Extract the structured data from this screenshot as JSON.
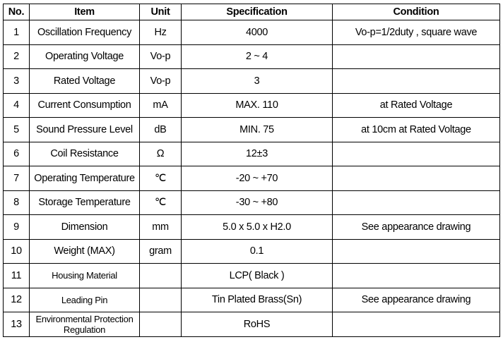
{
  "table": {
    "header": [
      "No.",
      "Item",
      "Unit",
      "Specification",
      "Condition"
    ],
    "rows": [
      {
        "no": "1",
        "item": "Oscillation Frequency",
        "unit": "Hz",
        "spec": "4000",
        "condition": "Vo-p=1/2duty , square wave"
      },
      {
        "no": "2",
        "item": "Operating Voltage",
        "unit": "Vo-p",
        "spec": "2 ~ 4"
      },
      {
        "no": "3",
        "item": "Rated Voltage",
        "unit": "Vo-p",
        "spec": "3"
      },
      {
        "no": "4",
        "item": "Current Consumption",
        "unit": "mA",
        "spec": "MAX. 110",
        "condition": "at Rated Voltage"
      },
      {
        "no": "5",
        "item": "Sound Pressure Level",
        "unit": "dB",
        "spec": "MIN. 75",
        "condition": "at 10cm at Rated Voltage"
      },
      {
        "no": "6",
        "item": "Coil Resistance",
        "unit": "Ω",
        "spec": "12±3"
      },
      {
        "no": "7",
        "item": "Operating Temperature",
        "unit": "℃",
        "spec": "-20 ~ +70"
      },
      {
        "no": "8",
        "item": "Storage Temperature",
        "unit": "℃",
        "spec": "-30 ~ +80"
      },
      {
        "no": "9",
        "item": "Dimension",
        "unit": "mm",
        "spec": "5.0 x 5.0 x H2.0",
        "condition": "See appearance drawing"
      },
      {
        "no": "10",
        "item": "Weight (MAX)",
        "unit": "gram",
        "spec": "0.1"
      },
      {
        "no": "11",
        "item": "Housing Material",
        "spec": "LCP( Black )"
      },
      {
        "no": "12",
        "item": "Leading Pin",
        "spec": "Tin Plated Brass(Sn)",
        "condition": "See appearance drawing"
      },
      {
        "no": "13",
        "item": "Environmental Protection Regulation",
        "spec": "RoHS"
      }
    ]
  }
}
